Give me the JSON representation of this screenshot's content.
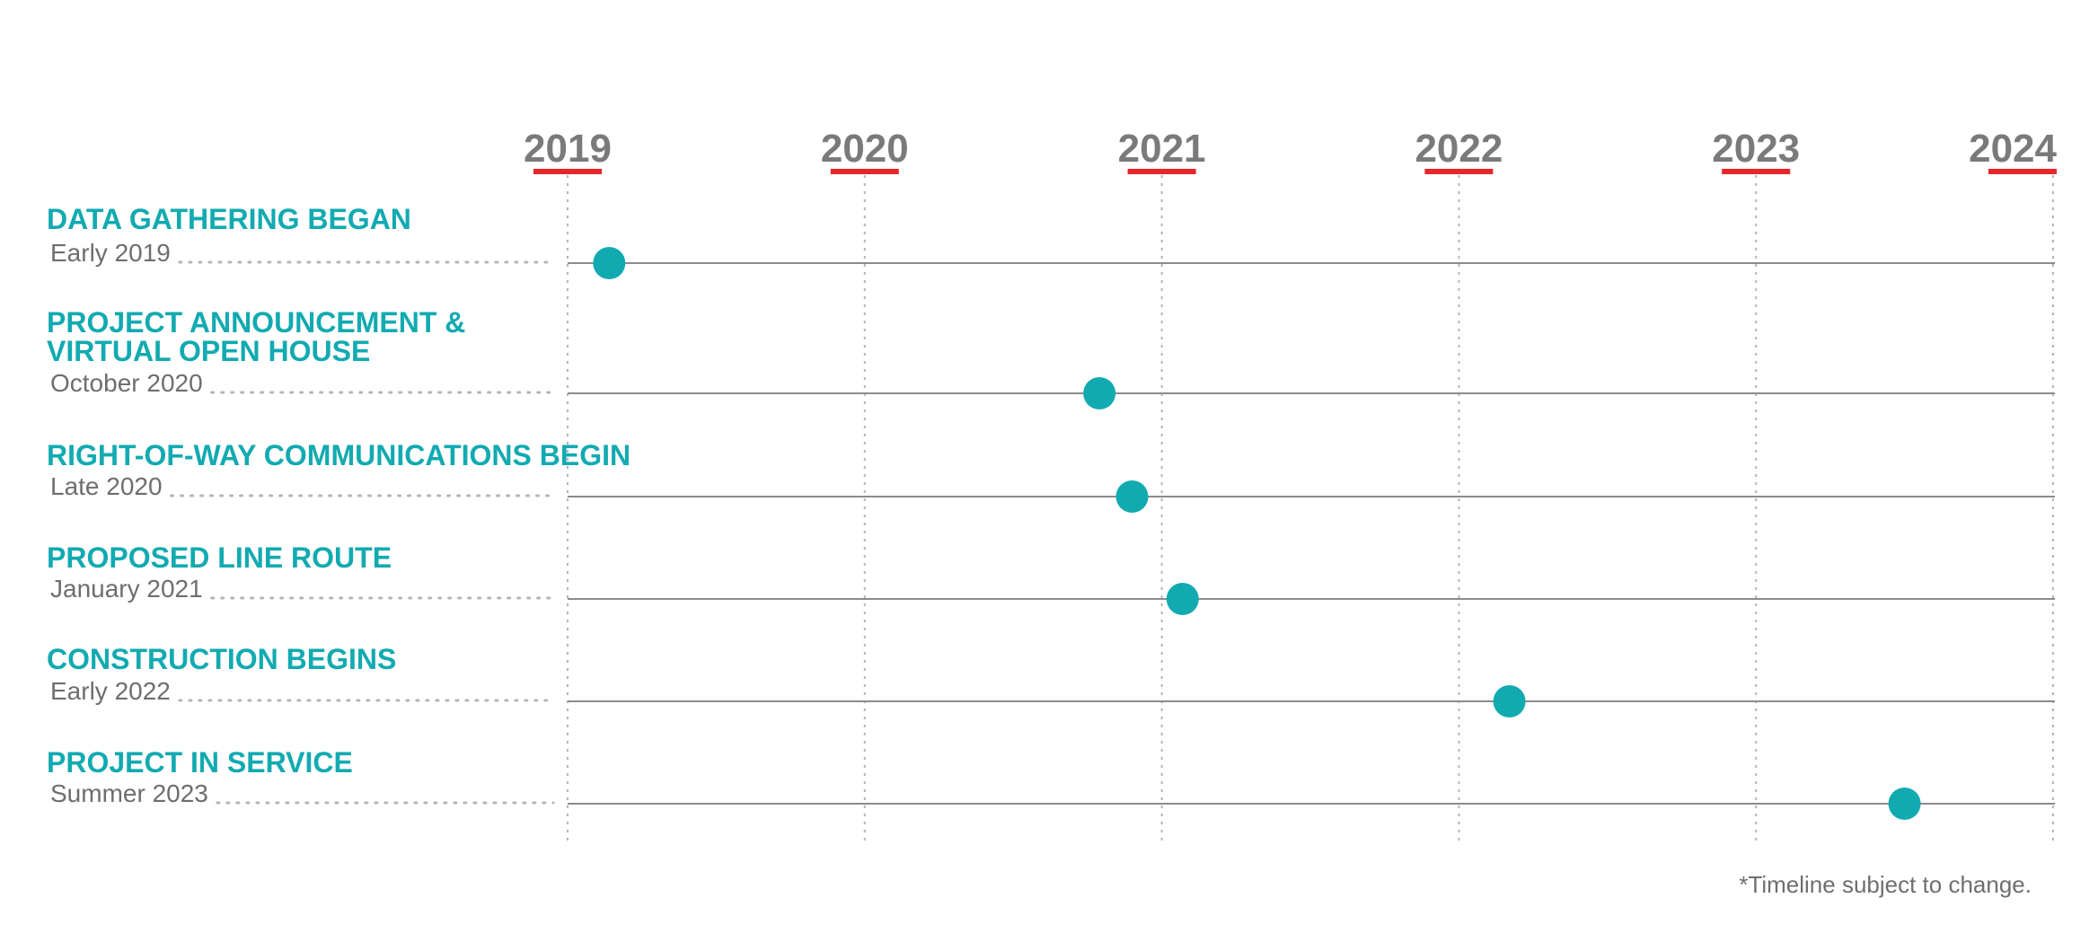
{
  "footnote": "*Timeline subject to change.",
  "colors": {
    "accent": "#12aab1",
    "marker": "#12aab1",
    "year_underline": "#e8262a",
    "year_text": "#7a7a7d",
    "axis_line": "#8c8c8e",
    "grid_dotted": "#b5b5b7"
  },
  "chart_data": {
    "type": "timeline",
    "axis_ticks": [
      "2019",
      "2020",
      "2021",
      "2022",
      "2023",
      "2024"
    ],
    "xlim": [
      2019,
      2024
    ],
    "grid": "vertical dotted lines at each year",
    "events": [
      {
        "title": [
          "DATA GATHERING BEGAN"
        ],
        "date_label": "Early 2019",
        "x": 2019.14
      },
      {
        "title": [
          "PROJECT ANNOUNCEMENT &",
          "VIRTUAL OPEN HOUSE"
        ],
        "date_label": "October 2020",
        "x": 2020.79
      },
      {
        "title": [
          "RIGHT-OF-WAY COMMUNICATIONS BEGIN"
        ],
        "date_label": "Late 2020",
        "x": 2020.9
      },
      {
        "title": [
          "PROPOSED LINE ROUTE"
        ],
        "date_label": "January 2021",
        "x": 2021.07
      },
      {
        "title": [
          "CONSTRUCTION BEGINS"
        ],
        "date_label": "Early 2022",
        "x": 2022.17
      },
      {
        "title": [
          "PROJECT IN SERVICE"
        ],
        "date_label": "Summer 2023",
        "x": 2023.5
      }
    ]
  }
}
